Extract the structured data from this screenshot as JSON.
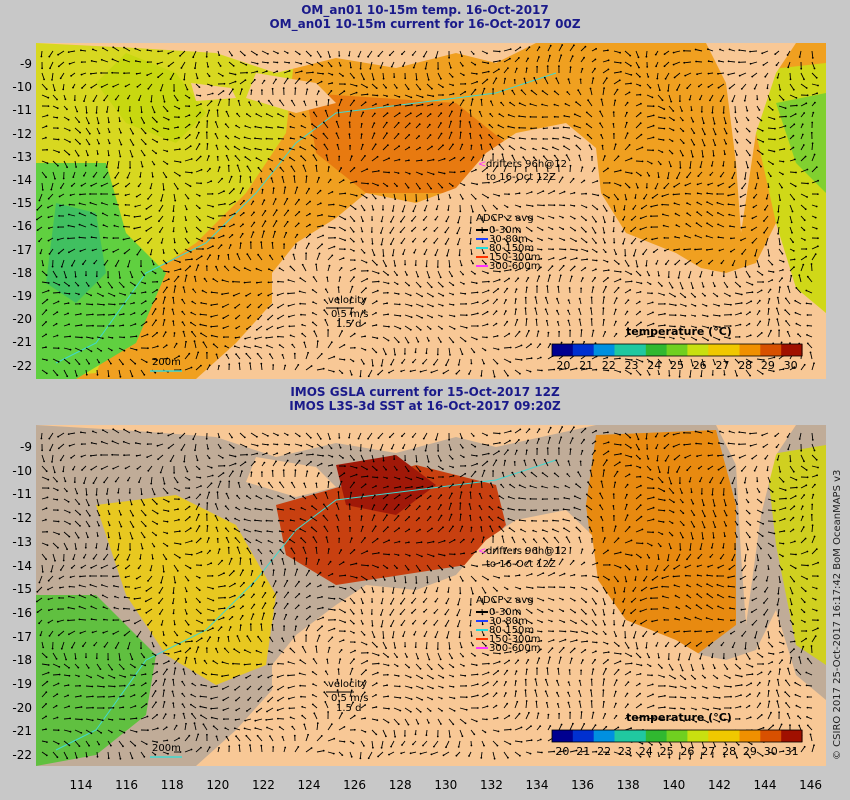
{
  "panels": [
    {
      "title1": "OM_an01 10-15m temp. 16-Oct-2017",
      "title2": "OM_an01 10-15m current for 16-Oct-2017 00Z",
      "drifters1": "drifters 96h@12",
      "drifters2": "to 16-Oct 12Z",
      "adcp_title": "ADCP z avg",
      "adcp": [
        {
          "label": "0-30m",
          "color": "#000000"
        },
        {
          "label": "30-80m",
          "color": "#1f3fff"
        },
        {
          "label": "80-150m",
          "color": "#22dddd"
        },
        {
          "label": "150-300m",
          "color": "#ff3300"
        },
        {
          "label": "300-600m",
          "color": "#ff33ff"
        }
      ],
      "velocity1": "velocity",
      "velocity2": "0.5 m/s",
      "velocity3": "1.5 d",
      "isobath": "200m",
      "cbar_title": "temperature (°C)",
      "cbar_ticks": [
        "20",
        "21",
        "22",
        "23",
        "24",
        "25",
        "26",
        "27",
        "28",
        "29",
        "30"
      ]
    },
    {
      "title1": "IMOS GSLA current for 15-Oct-2017 12Z",
      "title2": "IMOS L3S-3d SST at 16-Oct-2017 09:20Z",
      "drifters1": "drifters 96h@12",
      "drifters2": "to 16-Oct 12Z",
      "adcp_title": "ADCP z avg",
      "adcp": [
        {
          "label": "0-30m",
          "color": "#000000"
        },
        {
          "label": "30-80m",
          "color": "#1f3fff"
        },
        {
          "label": "80-150m",
          "color": "#22dddd"
        },
        {
          "label": "150-300m",
          "color": "#ff3300"
        },
        {
          "label": "300-600m",
          "color": "#ff33ff"
        }
      ],
      "velocity1": "velocity",
      "velocity2": "0.5 m/s",
      "velocity3": "1.5 d",
      "isobath": "200m",
      "cbar_title": "temperature (°C)",
      "cbar_ticks": [
        "20",
        "21",
        "22",
        "23",
        "24",
        "25",
        "26",
        "27",
        "28",
        "29",
        "30",
        "31"
      ]
    }
  ],
  "y_ticks": [
    "-9",
    "-10",
    "-11",
    "-12",
    "-13",
    "-14",
    "-15",
    "-16",
    "-17",
    "-18",
    "-19",
    "-20",
    "-21",
    "-22"
  ],
  "x_ticks": [
    "114",
    "116",
    "118",
    "120",
    "122",
    "124",
    "126",
    "128",
    "130",
    "132",
    "134",
    "136",
    "138",
    "140",
    "142",
    "144",
    "146"
  ],
  "credit": "© CSIRO 2017  25-Oct-2017 16:17:42 BoM OceanMAPS v3",
  "colors": {
    "land": "#f8c896",
    "nodata": "#c0ac98",
    "isobath": "#40d8d0",
    "title": "#1a1a8a",
    "colormap": [
      "#000090",
      "#0030d0",
      "#0090e0",
      "#20c8a0",
      "#30b830",
      "#70d020",
      "#c8e010",
      "#f0c800",
      "#f09000",
      "#d85000",
      "#a01000"
    ]
  }
}
